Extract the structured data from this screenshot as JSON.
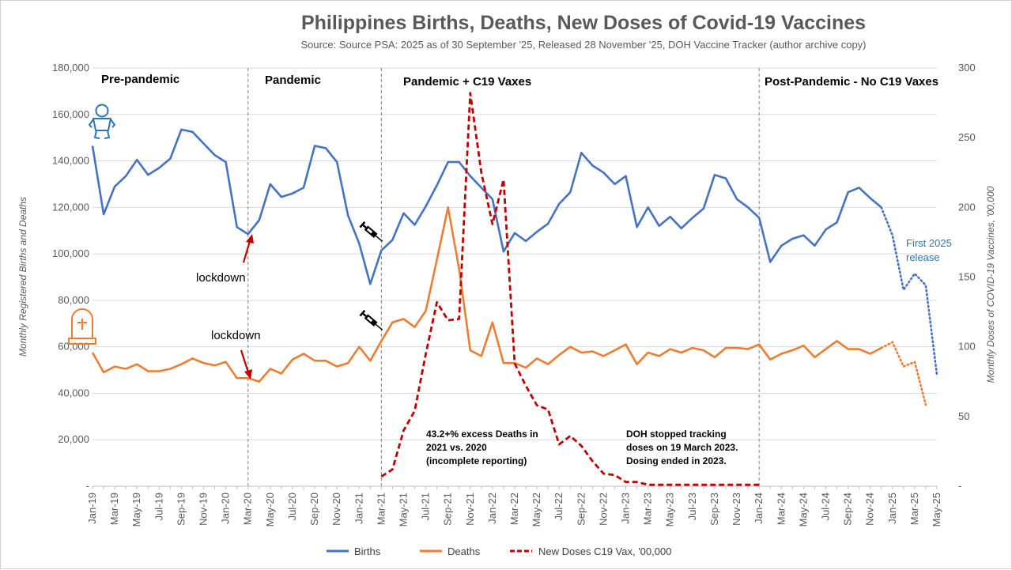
{
  "chart_data": {
    "type": "line",
    "title": "Philippines Births, Deaths, New Doses of Covid-19 Vaccines",
    "subtitle": "Source: Source PSA: 2025 as of 30 September '25, Released 28 November '25, DOH Vaccine Tracker (author archive copy)",
    "ylabel_left": "Monthly Registered Births and Deaths",
    "ylabel_right": "Monthly Doses of COVID-19 Vaccines, '00,000",
    "ylim_left": [
      0,
      180000
    ],
    "ylim_right": [
      0,
      300
    ],
    "yticks_left": [
      "-",
      "20,000",
      "40,000",
      "60,000",
      "80,000",
      "100,000",
      "120,000",
      "140,000",
      "160,000",
      "180,000"
    ],
    "yticks_right": [
      "-",
      "50",
      "100",
      "150",
      "200",
      "250",
      "300"
    ],
    "months": [
      "Jan-19",
      "Feb-19",
      "Mar-19",
      "Apr-19",
      "May-19",
      "Jun-19",
      "Jul-19",
      "Aug-19",
      "Sep-19",
      "Oct-19",
      "Nov-19",
      "Dec-19",
      "Jan-20",
      "Feb-20",
      "Mar-20",
      "Apr-20",
      "May-20",
      "Jun-20",
      "Jul-20",
      "Aug-20",
      "Sep-20",
      "Oct-20",
      "Nov-20",
      "Dec-20",
      "Jan-21",
      "Feb-21",
      "Mar-21",
      "Apr-21",
      "May-21",
      "Jun-21",
      "Jul-21",
      "Aug-21",
      "Sep-21",
      "Oct-21",
      "Nov-21",
      "Dec-21",
      "Jan-22",
      "Feb-22",
      "Mar-22",
      "Apr-22",
      "May-22",
      "Jun-22",
      "Jul-22",
      "Aug-22",
      "Sep-22",
      "Oct-22",
      "Nov-22",
      "Dec-22",
      "Jan-23",
      "Feb-23",
      "Mar-23",
      "Apr-23",
      "May-23",
      "Jun-23",
      "Jul-23",
      "Aug-23",
      "Sep-23",
      "Oct-23",
      "Nov-23",
      "Dec-23",
      "Jan-24",
      "Feb-24",
      "Mar-24",
      "Apr-24",
      "May-24",
      "Jun-24",
      "Jul-24",
      "Aug-24",
      "Sep-24",
      "Oct-24",
      "Nov-24",
      "Dec-24",
      "Jan-25",
      "Feb-25",
      "Mar-25",
      "Apr-25",
      "May-25"
    ],
    "series": [
      {
        "name": "Births",
        "axis": "left",
        "color": "#4472c4",
        "style": "solid",
        "values": [
          146500,
          117000,
          129000,
          133500,
          140500,
          134000,
          137000,
          141000,
          153500,
          152500,
          147500,
          142500,
          139500,
          111500,
          108500,
          114500,
          130000,
          124500,
          126000,
          128500,
          146500,
          145500,
          139500,
          116500,
          104500,
          87000,
          101500,
          106000,
          117500,
          112500,
          120500,
          129500,
          139500,
          139500,
          133500,
          128500,
          123500,
          101000,
          109000,
          105500,
          109500,
          113000,
          121500,
          126500,
          143500,
          138000,
          135000,
          130000,
          133500,
          111500,
          120000,
          112000,
          116000,
          111000,
          115500,
          119500,
          134000,
          132500,
          123500,
          120000,
          115500,
          96500,
          103500,
          106500,
          108000,
          103500,
          110500,
          113500,
          126500,
          128500,
          124000,
          120000
        ],
        "projected_values": [
          120000,
          108000,
          84500,
          91500,
          86500,
          48000
        ],
        "projected_start_month": "Dec-24"
      },
      {
        "name": "Deaths",
        "axis": "left",
        "color": "#ed7d31",
        "style": "solid",
        "values": [
          57500,
          49000,
          51500,
          50500,
          52500,
          49500,
          49500,
          50500,
          52500,
          55000,
          53000,
          52000,
          53500,
          46500,
          46500,
          45000,
          50500,
          48500,
          54500,
          57000,
          54000,
          54000,
          51500,
          53000,
          60000,
          54000,
          62500,
          70500,
          72000,
          68500,
          75500,
          97500,
          120000,
          93500,
          58500,
          56000,
          70500,
          53000,
          53000,
          51000,
          55000,
          52500,
          56500,
          60000,
          57500,
          58000,
          56000,
          58500,
          61000,
          52500,
          57500,
          56000,
          59000,
          57500,
          59500,
          58500,
          55500,
          59500,
          59500,
          59000,
          61000,
          54500,
          57000,
          58500,
          60500,
          55500,
          59000,
          62500,
          59000,
          59000,
          57000,
          59500
        ],
        "projected_values": [
          59500,
          62000,
          51500,
          53500,
          35000
        ],
        "projected_start_month": "Dec-24"
      },
      {
        "name": "New Doses C19 Vax, '00,000",
        "axis": "right",
        "color": "#c00000",
        "style": "dashed",
        "start_month": "Mar-21",
        "values": [
          7,
          12,
          40,
          54,
          95,
          132,
          119,
          120,
          282,
          225,
          188,
          220,
          88,
          72,
          58,
          55,
          30,
          36,
          29,
          18,
          9,
          8,
          3,
          3,
          1,
          1,
          1,
          1,
          1,
          1,
          1,
          1,
          1,
          1,
          1
        ]
      }
    ],
    "legend": [
      "Births",
      "Deaths",
      "New Doses C19 Vax, '00,000"
    ],
    "legend_position": "bottom",
    "periods": [
      {
        "label": "Pre-pandemic",
        "from": "Jan-19"
      },
      {
        "label": "Pandemic",
        "from": "Mar-20"
      },
      {
        "label": "Pandemic + C19 Vaxes",
        "from": "Mar-21"
      },
      {
        "label": "Post-Pandemic - No C19 Vaxes",
        "from": "Jan-24"
      }
    ],
    "period_dividers": [
      "Mar-20",
      "Mar-21",
      "Jan-24"
    ],
    "annotations": {
      "lockdown_births": "lockdown",
      "lockdown_deaths": "lockdown",
      "excess_deaths": [
        "43.2+% excess Deaths in",
        "2021 vs. 2020",
        "(incomplete reporting)"
      ],
      "doh_stopped": [
        "DOH stopped tracking",
        "doses on 19 March 2023.",
        "Dosing ended in 2023."
      ],
      "first_release": [
        "First 2025",
        "release"
      ]
    }
  },
  "icons": {
    "baby": "baby-icon",
    "tombstone": "tombstone-icon",
    "syringe": "syringe-icon"
  },
  "colors": {
    "births": "#4472c4",
    "deaths": "#ed7d31",
    "vax": "#c00000",
    "annotation_blue": "#2e75b6",
    "arrow": "#c00000"
  }
}
